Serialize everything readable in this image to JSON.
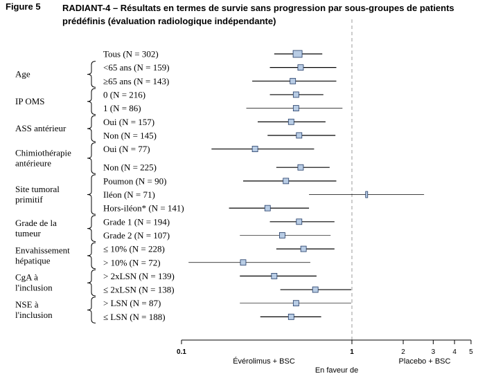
{
  "figure_label": "Figure 5",
  "title": "RADIANT-4 – Résultats en termes de survie sans progression par sous-groupes de patients prédéfinis (évaluation radiologique indépendante)",
  "axis": {
    "left_label": "Évérolimus + BSC",
    "center_label": "En faveur de",
    "right_label": "Placebo + BSC"
  },
  "colors": {
    "marker_fill": "#b8cce4",
    "marker_stroke": "#1f3864",
    "line": "#000000",
    "reference": "#999999"
  },
  "chart_data": {
    "type": "forest",
    "x_scale": "log",
    "xlim": [
      0.1,
      5
    ],
    "x_ticks": [
      0.1,
      1,
      2,
      3,
      4,
      5
    ],
    "x_tick_labels": [
      "0.1",
      "1",
      "2",
      "3",
      "4",
      "5"
    ],
    "reference_line": 1,
    "groups": [
      {
        "label": "",
        "rows": [
          0
        ]
      },
      {
        "label": "Age",
        "rows": [
          1,
          2
        ]
      },
      {
        "label": "IP OMS",
        "rows": [
          3,
          4
        ]
      },
      {
        "label": "ASS antérieur",
        "rows": [
          5,
          6
        ]
      },
      {
        "label": "Chimiothérapie antérieure",
        "rows": [
          7,
          8
        ]
      },
      {
        "label": "Site tumoral primitif",
        "rows": [
          9,
          10,
          11
        ]
      },
      {
        "label": "Grade de la tumeur",
        "rows": [
          12,
          13
        ]
      },
      {
        "label": "Envahissement hépatique",
        "rows": [
          14,
          15
        ]
      },
      {
        "label": "CgA à l'inclusion",
        "rows": [
          16,
          17
        ]
      },
      {
        "label": "NSE à l'inclusion",
        "rows": [
          18,
          19
        ]
      }
    ],
    "rows": [
      {
        "label": "Tous (N = 302)",
        "hr": 0.48,
        "lo": 0.35,
        "hi": 0.67
      },
      {
        "label": "<65 ans (N = 159)",
        "hr": 0.5,
        "lo": 0.33,
        "hi": 0.81
      },
      {
        "label": "≥65 ans (N = 143)",
        "hr": 0.45,
        "lo": 0.26,
        "hi": 0.81
      },
      {
        "label": "0 (N = 216)",
        "hr": 0.47,
        "lo": 0.33,
        "hi": 0.68
      },
      {
        "label": "1 (N = 86)",
        "hr": 0.47,
        "lo": 0.24,
        "hi": 0.88
      },
      {
        "label": "Oui (N = 157)",
        "hr": 0.44,
        "lo": 0.28,
        "hi": 0.7
      },
      {
        "label": "Non (N = 145)",
        "hr": 0.49,
        "lo": 0.32,
        "hi": 0.8
      },
      {
        "label": "Oui (N = 77)",
        "hr": 0.27,
        "lo": 0.15,
        "hi": 0.6
      },
      {
        "label": "Non (N = 225)",
        "hr": 0.5,
        "lo": 0.36,
        "hi": 0.74
      },
      {
        "label": "Poumon (N = 90)",
        "hr": 0.41,
        "lo": 0.23,
        "hi": 0.81
      },
      {
        "label": "Iléon (N = 71)",
        "hr": 1.22,
        "lo": 0.56,
        "hi": 2.65
      },
      {
        "label": "Hors-iléon* (N = 141)",
        "hr": 0.32,
        "lo": 0.19,
        "hi": 0.56
      },
      {
        "label": "Grade 1 (N = 194)",
        "hr": 0.49,
        "lo": 0.33,
        "hi": 0.79
      },
      {
        "label": "Grade 2 (N = 107)",
        "hr": 0.39,
        "lo": 0.22,
        "hi": 0.75
      },
      {
        "label": "≤ 10% (N = 228)",
        "hr": 0.52,
        "lo": 0.36,
        "hi": 0.79
      },
      {
        "label": "> 10% (N = 72)",
        "hr": 0.23,
        "lo": 0.11,
        "hi": 0.57
      },
      {
        "label": "> 2xLSN (N = 139)",
        "hr": 0.35,
        "lo": 0.22,
        "hi": 0.62
      },
      {
        "label": "≤ 2xLSN (N = 138)",
        "hr": 0.61,
        "lo": 0.38,
        "hi": 0.99
      },
      {
        "label": "> LSN (N = 87)",
        "hr": 0.47,
        "lo": 0.22,
        "hi": 0.99
      },
      {
        "label": "≤ LSN (N = 188)",
        "hr": 0.44,
        "lo": 0.29,
        "hi": 0.66
      }
    ]
  }
}
